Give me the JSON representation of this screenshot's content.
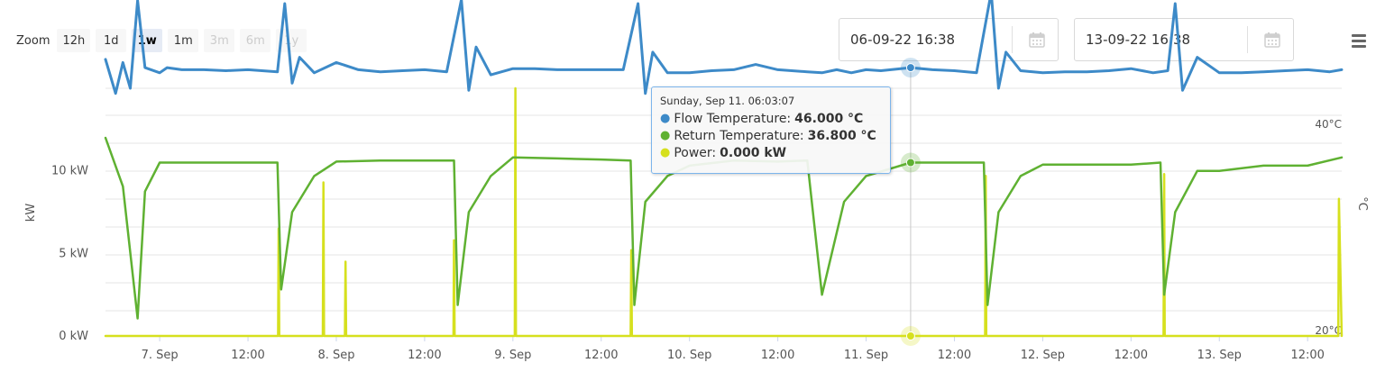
{
  "zoom": {
    "label": "Zoom",
    "buttons": [
      {
        "label": "12h",
        "state": "normal"
      },
      {
        "label": "1d",
        "state": "normal"
      },
      {
        "label": "1w",
        "state": "active"
      },
      {
        "label": "1m",
        "state": "normal"
      },
      {
        "label": "3m",
        "state": "disabled"
      },
      {
        "label": "6m",
        "state": "disabled"
      },
      {
        "label": "1y",
        "state": "disabled"
      }
    ]
  },
  "range": {
    "from": "06-09-22 16:38",
    "to": "13-09-22 16:38"
  },
  "tooltip": {
    "header": "Sunday, Sep 11. 06:03:07",
    "rows": [
      {
        "label": "Flow Temperature:",
        "value": "46.000 °C",
        "color": "#3d8ac8"
      },
      {
        "label": "Return Temperature:",
        "value": "36.800 °C",
        "color": "#5fb132"
      },
      {
        "label": "Power:",
        "value": "0.000 kW",
        "color": "#d6e01e"
      }
    ]
  },
  "chart_data": {
    "type": "line",
    "x_axis": {
      "min": "2022-09-06 16:38",
      "max": "2022-09-13 16:38",
      "tick_labels": [
        "7. Sep",
        "12:00",
        "8. Sep",
        "12:00",
        "9. Sep",
        "12:00",
        "10. Sep",
        "12:00",
        "11. Sep",
        "12:00",
        "12. Sep",
        "12:00",
        "13. Sep",
        "12:00"
      ]
    },
    "y_axis_left": {
      "title": "kW",
      "tick_labels": [
        "0 kW",
        "5 kW",
        "10 kW"
      ],
      "ticks": [
        0,
        5,
        10
      ],
      "range": [
        0,
        15
      ]
    },
    "y_axis_right": {
      "title": "°C",
      "tick_labels": [
        "20°C",
        "40°C"
      ],
      "ticks": [
        20,
        40
      ],
      "range": [
        20,
        44
      ]
    },
    "grid": true,
    "crosshair_x": "2022-09-11 06:03",
    "series": [
      {
        "name": "Flow Temperature",
        "unit": "°C",
        "axis": "right",
        "color": "#3d8ac8",
        "x": [
          "2022-09-06 16:38",
          "2022-09-06 18:00",
          "2022-09-06 19:00",
          "2022-09-06 20:00",
          "2022-09-06 21:00",
          "2022-09-06 22:00",
          "2022-09-07 00:00",
          "2022-09-07 01:00",
          "2022-09-07 03:00",
          "2022-09-07 06:00",
          "2022-09-07 09:00",
          "2022-09-07 12:00",
          "2022-09-07 16:00",
          "2022-09-07 17:00",
          "2022-09-07 18:00",
          "2022-09-07 19:00",
          "2022-09-07 21:00",
          "2022-09-08 00:00",
          "2022-09-08 03:00",
          "2022-09-08 06:00",
          "2022-09-08 09:00",
          "2022-09-08 12:00",
          "2022-09-08 15:00",
          "2022-09-08 17:00",
          "2022-09-08 18:00",
          "2022-09-08 19:00",
          "2022-09-08 21:00",
          "2022-09-09 00:00",
          "2022-09-09 03:00",
          "2022-09-09 06:00",
          "2022-09-09 09:00",
          "2022-09-09 12:00",
          "2022-09-09 15:00",
          "2022-09-09 17:00",
          "2022-09-09 18:00",
          "2022-09-09 19:00",
          "2022-09-09 21:00",
          "2022-09-10 00:00",
          "2022-09-10 03:00",
          "2022-09-10 06:00",
          "2022-09-10 09:00",
          "2022-09-10 12:00",
          "2022-09-10 16:00",
          "2022-09-10 18:00",
          "2022-09-10 20:00",
          "2022-09-10 22:00",
          "2022-09-11 00:00",
          "2022-09-11 02:00",
          "2022-09-11 06:03",
          "2022-09-11 09:00",
          "2022-09-11 12:00",
          "2022-09-11 15:00",
          "2022-09-11 17:00",
          "2022-09-11 18:00",
          "2022-09-11 19:00",
          "2022-09-11 21:00",
          "2022-09-12 00:00",
          "2022-09-12 03:00",
          "2022-09-12 06:00",
          "2022-09-12 09:00",
          "2022-09-12 12:00",
          "2022-09-12 15:00",
          "2022-09-12 17:00",
          "2022-09-12 18:00",
          "2022-09-12 19:00",
          "2022-09-12 21:00",
          "2022-09-13 00:00",
          "2022-09-13 03:00",
          "2022-09-13 06:00",
          "2022-09-13 09:00",
          "2022-09-13 12:00",
          "2022-09-13 15:00",
          "2022-09-13 16:38"
        ],
        "y": [
          46.8,
          43.5,
          46.5,
          44,
          52.5,
          46,
          45.5,
          46,
          45.8,
          45.8,
          45.7,
          45.8,
          45.6,
          52.2,
          44.5,
          47,
          45.5,
          46.5,
          45.8,
          45.6,
          45.7,
          45.8,
          45.6,
          52.6,
          43.8,
          48,
          45.3,
          45.9,
          45.9,
          45.8,
          45.8,
          45.8,
          45.8,
          52.2,
          43.5,
          47.5,
          45.5,
          45.5,
          45.7,
          45.8,
          46.3,
          45.8,
          45.6,
          45.5,
          45.8,
          45.5,
          45.8,
          45.7,
          46,
          45.8,
          45.7,
          45.5,
          53.3,
          44,
          47.5,
          45.7,
          45.5,
          45.6,
          45.6,
          45.7,
          45.9,
          45.5,
          45.7,
          52.2,
          43.8,
          47,
          45.5,
          45.5,
          45.6,
          45.7,
          45.8,
          45.6,
          45.8
        ]
      },
      {
        "name": "Return Temperature",
        "unit": "°C",
        "axis": "right",
        "color": "#5fb132",
        "x": [
          "2022-09-06 16:38",
          "2022-09-06 19:00",
          "2022-09-06 21:00",
          "2022-09-06 22:00",
          "2022-09-07 00:00",
          "2022-09-07 06:00",
          "2022-09-07 12:00",
          "2022-09-07 16:00",
          "2022-09-07 16:30",
          "2022-09-07 18:00",
          "2022-09-07 21:00",
          "2022-09-08 00:00",
          "2022-09-08 06:00",
          "2022-09-08 12:00",
          "2022-09-08 16:00",
          "2022-09-08 16:30",
          "2022-09-08 18:00",
          "2022-09-08 21:00",
          "2022-09-09 00:00",
          "2022-09-09 06:00",
          "2022-09-09 12:00",
          "2022-09-09 16:00",
          "2022-09-09 16:30",
          "2022-09-09 18:00",
          "2022-09-09 21:00",
          "2022-09-10 00:00",
          "2022-09-10 06:00",
          "2022-09-10 12:00",
          "2022-09-10 16:00",
          "2022-09-10 18:00",
          "2022-09-10 21:00",
          "2022-09-11 00:00",
          "2022-09-11 06:03",
          "2022-09-11 12:00",
          "2022-09-11 16:00",
          "2022-09-11 16:30",
          "2022-09-11 18:00",
          "2022-09-11 21:00",
          "2022-09-12 00:00",
          "2022-09-12 06:00",
          "2022-09-12 12:00",
          "2022-09-12 16:00",
          "2022-09-12 16:30",
          "2022-09-12 18:00",
          "2022-09-12 21:00",
          "2022-09-13 00:00",
          "2022-09-13 06:00",
          "2022-09-13 12:00",
          "2022-09-13 16:38"
        ],
        "y": [
          39.2,
          34.5,
          21.7,
          34,
          36.8,
          36.8,
          36.8,
          36.8,
          24.5,
          32,
          35.5,
          36.9,
          37,
          37,
          37,
          23,
          32,
          35.5,
          37.3,
          37.2,
          37.1,
          37,
          23,
          33,
          35.5,
          36.5,
          37,
          36.9,
          37,
          24,
          33,
          35.5,
          36.8,
          36.8,
          36.8,
          23,
          32,
          35.5,
          36.6,
          36.6,
          36.6,
          36.8,
          24,
          32,
          36,
          36,
          36.5,
          36.5,
          37.3
        ]
      },
      {
        "name": "Power",
        "unit": "kW",
        "axis": "left",
        "color": "#d6e01e",
        "x": [
          "2022-09-06 16:38",
          "2022-09-07 16:05",
          "2022-09-07 16:10",
          "2022-09-07 16:15",
          "2022-09-07 22:10",
          "2022-09-07 22:15",
          "2022-09-07 22:20",
          "2022-09-08 01:10",
          "2022-09-08 01:15",
          "2022-09-08 01:20",
          "2022-09-08 15:55",
          "2022-09-08 16:00",
          "2022-09-08 16:05",
          "2022-09-09 00:15",
          "2022-09-09 00:20",
          "2022-09-09 00:25",
          "2022-09-09 16:00",
          "2022-09-09 16:05",
          "2022-09-09 16:10",
          "2022-09-11 16:10",
          "2022-09-11 16:15",
          "2022-09-11 16:20",
          "2022-09-12 16:25",
          "2022-09-12 16:30",
          "2022-09-12 16:35",
          "2022-09-13 16:10",
          "2022-09-13 16:15",
          "2022-09-13 16:38"
        ],
        "y": [
          0,
          0,
          6.5,
          0,
          0,
          9.3,
          0,
          0,
          4.5,
          0,
          0,
          5.8,
          0,
          0,
          15,
          0,
          0,
          5.2,
          0,
          0,
          9.7,
          0,
          0,
          9.8,
          0,
          0,
          8.3,
          0
        ]
      }
    ]
  }
}
